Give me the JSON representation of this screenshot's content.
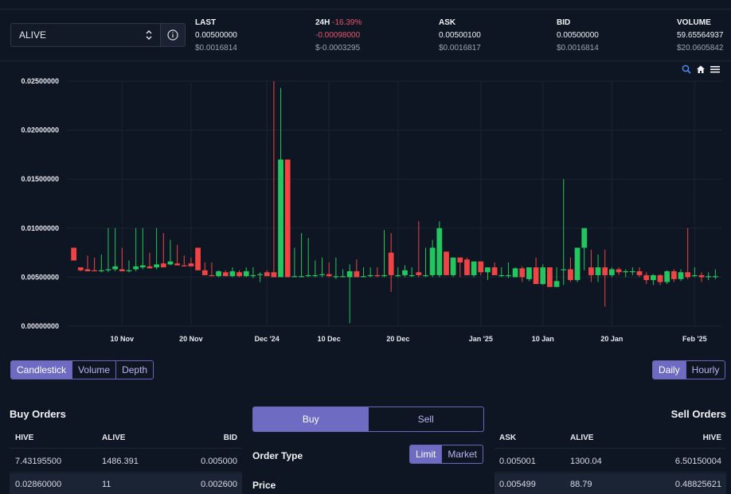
{
  "market": {
    "selected": "ALIVE"
  },
  "stats": {
    "last": {
      "label": "LAST",
      "value": "0.00500000",
      "usd": "$0.0016814"
    },
    "change": {
      "label": "24H",
      "pct": "-16.39%",
      "value": "-0.00098000",
      "usd": "$-0.0003295"
    },
    "ask": {
      "label": "ASK",
      "value": "0.00500100",
      "usd": "$0.0016817"
    },
    "bid": {
      "label": "BID",
      "value": "0.00500000",
      "usd": "$0.0016814"
    },
    "volume": {
      "label": "VOLUME",
      "value": "59.65564937",
      "usd": "$20.0605842"
    }
  },
  "chart_tools": {
    "zoom": "magnifier-icon",
    "home": "home-icon",
    "menu": "hamburger-menu-icon"
  },
  "chart_data": {
    "type": "candlestick",
    "y_ticks": [
      "0.02500000",
      "0.02000000",
      "0.01500000",
      "0.01000000",
      "0.00500000",
      "0.00000000"
    ],
    "ylim": [
      0,
      0.025
    ],
    "x_ticks": [
      {
        "label": "10 Nov",
        "day": 10
      },
      {
        "label": "20 Nov",
        "day": 20
      },
      {
        "label": "Dec '24",
        "day": 31
      },
      {
        "label": "10 Dec",
        "day": 40
      },
      {
        "label": "20 Dec",
        "day": 50
      },
      {
        "label": "Jan '25",
        "day": 62
      },
      {
        "label": "10 Jan",
        "day": 71
      },
      {
        "label": "20 Jan",
        "day": 81
      },
      {
        "label": "Feb '25",
        "day": 93
      }
    ],
    "xlim": [
      2,
      97
    ],
    "colors": {
      "up": "#22c55e",
      "down": "#ef4444",
      "grid": "#1b2433",
      "axis_text": "#e6e8ee"
    },
    "candles": [
      [
        3,
        0.008,
        0.008,
        0.0067,
        0.0067
      ],
      [
        4,
        0.006,
        0.006,
        0.0056,
        0.0057
      ],
      [
        5,
        0.0058,
        0.0072,
        0.0056,
        0.0056
      ],
      [
        6,
        0.0057,
        0.007,
        0.0056,
        0.0056
      ],
      [
        7,
        0.0056,
        0.0073,
        0.0055,
        0.0057
      ],
      [
        8,
        0.0057,
        0.01,
        0.0055,
        0.0058
      ],
      [
        9,
        0.0058,
        0.01,
        0.0056,
        0.0061
      ],
      [
        10,
        0.0058,
        0.008,
        0.0056,
        0.0056
      ],
      [
        11,
        0.0056,
        0.0067,
        0.0055,
        0.0057
      ],
      [
        12,
        0.0058,
        0.01,
        0.0056,
        0.0061
      ],
      [
        13,
        0.006,
        0.01,
        0.0058,
        0.0062
      ],
      [
        14,
        0.0061,
        0.0075,
        0.0059,
        0.0059
      ],
      [
        15,
        0.006,
        0.01,
        0.0058,
        0.0063
      ],
      [
        16,
        0.0064,
        0.0095,
        0.006,
        0.006
      ],
      [
        17,
        0.0063,
        0.0088,
        0.0062,
        0.0066
      ],
      [
        18,
        0.0064,
        0.0083,
        0.0062,
        0.0062
      ],
      [
        19,
        0.0062,
        0.0072,
        0.0061,
        0.0061
      ],
      [
        20,
        0.0064,
        0.007,
        0.0061,
        0.0061
      ],
      [
        21,
        0.008,
        0.008,
        0.0057,
        0.0057
      ],
      [
        22,
        0.0057,
        0.0065,
        0.0052,
        0.0052
      ],
      [
        23,
        0.0052,
        0.0065,
        0.0051,
        0.0051
      ],
      [
        24,
        0.0051,
        0.0057,
        0.005,
        0.0056
      ],
      [
        25,
        0.0055,
        0.0057,
        0.0051,
        0.0051
      ],
      [
        26,
        0.0051,
        0.006,
        0.005,
        0.0056
      ],
      [
        27,
        0.0055,
        0.0057,
        0.005,
        0.0051
      ],
      [
        28,
        0.0051,
        0.006,
        0.005,
        0.0056
      ],
      [
        29,
        0.0052,
        0.006,
        0.0049,
        0.0052
      ],
      [
        30,
        0.0052,
        0.0055,
        0.0045,
        0.0053
      ],
      [
        31,
        0.0055,
        0.0057,
        0.0051,
        0.0051
      ],
      [
        32,
        0.0055,
        0.025,
        0.005,
        0.005
      ],
      [
        33,
        0.005,
        0.0243,
        0.005,
        0.017
      ],
      [
        34,
        0.017,
        0.017,
        0.005,
        0.005
      ],
      [
        35,
        0.0051,
        0.008,
        0.005,
        0.0051
      ],
      [
        36,
        0.0051,
        0.0095,
        0.005,
        0.0051
      ],
      [
        37,
        0.0051,
        0.009,
        0.005,
        0.0052
      ],
      [
        38,
        0.0052,
        0.0067,
        0.005,
        0.0052
      ],
      [
        39,
        0.0052,
        0.007,
        0.005,
        0.0053
      ],
      [
        40,
        0.0053,
        0.0065,
        0.005,
        0.0051
      ],
      [
        41,
        0.0051,
        0.007,
        0.0048,
        0.0051
      ],
      [
        42,
        0.0051,
        0.0058,
        0.005,
        0.0051
      ],
      [
        43,
        0.005,
        0.0063,
        0.0003,
        0.0056
      ],
      [
        44,
        0.0056,
        0.0068,
        0.005,
        0.005
      ],
      [
        45,
        0.005,
        0.006,
        0.005,
        0.0051
      ],
      [
        46,
        0.0051,
        0.006,
        0.005,
        0.0052
      ],
      [
        47,
        0.0052,
        0.006,
        0.005,
        0.0051
      ],
      [
        48,
        0.0051,
        0.0098,
        0.005,
        0.0052
      ],
      [
        49,
        0.0075,
        0.0095,
        0.0035,
        0.0052
      ],
      [
        50,
        0.0052,
        0.006,
        0.005,
        0.0052
      ],
      [
        51,
        0.0052,
        0.0062,
        0.005,
        0.0057
      ],
      [
        52,
        0.0052,
        0.006,
        0.005,
        0.0052
      ],
      [
        53,
        0.0055,
        0.0107,
        0.005,
        0.0052
      ],
      [
        54,
        0.0052,
        0.008,
        0.005,
        0.0052
      ],
      [
        55,
        0.0052,
        0.0088,
        0.005,
        0.008
      ],
      [
        56,
        0.0052,
        0.0107,
        0.005,
        0.01
      ],
      [
        57,
        0.0076,
        0.0076,
        0.0052,
        0.0052
      ],
      [
        58,
        0.0052,
        0.007,
        0.005,
        0.007
      ],
      [
        59,
        0.007,
        0.007,
        0.005,
        0.0065
      ],
      [
        60,
        0.0068,
        0.007,
        0.0052,
        0.0052
      ],
      [
        61,
        0.0052,
        0.0065,
        0.005,
        0.0066
      ],
      [
        62,
        0.0066,
        0.0066,
        0.0052,
        0.0055
      ],
      [
        63,
        0.0055,
        0.006,
        0.0047,
        0.006
      ],
      [
        64,
        0.006,
        0.0065,
        0.0052,
        0.0052
      ],
      [
        65,
        0.0052,
        0.006,
        0.005,
        0.0052
      ],
      [
        66,
        0.0052,
        0.0065,
        0.0049,
        0.0052
      ],
      [
        67,
        0.005,
        0.006,
        0.005,
        0.0059
      ],
      [
        68,
        0.0059,
        0.0061,
        0.0045,
        0.005
      ],
      [
        69,
        0.0048,
        0.006,
        0.0046,
        0.006
      ],
      [
        70,
        0.006,
        0.007,
        0.0043,
        0.0043
      ],
      [
        71,
        0.0043,
        0.0063,
        0.0042,
        0.006
      ],
      [
        72,
        0.006,
        0.006,
        0.004,
        0.004
      ],
      [
        73,
        0.004,
        0.006,
        0.004,
        0.0046
      ],
      [
        74,
        0.0058,
        0.015,
        0.0042,
        0.0058
      ],
      [
        75,
        0.0058,
        0.007,
        0.0045,
        0.0047
      ],
      [
        76,
        0.0047,
        0.008,
        0.0045,
        0.008
      ],
      [
        77,
        0.008,
        0.01,
        0.0057,
        0.01
      ],
      [
        78,
        0.006,
        0.0078,
        0.0045,
        0.0052
      ],
      [
        79,
        0.0052,
        0.0073,
        0.0045,
        0.006
      ],
      [
        80,
        0.006,
        0.0078,
        0.002,
        0.0052
      ],
      [
        81,
        0.0052,
        0.006,
        0.005,
        0.0058
      ],
      [
        82,
        0.0058,
        0.006,
        0.0052,
        0.0055
      ],
      [
        83,
        0.0055,
        0.0058,
        0.005,
        0.0056
      ],
      [
        84,
        0.0056,
        0.006,
        0.0052,
        0.0056
      ],
      [
        85,
        0.0056,
        0.006,
        0.005,
        0.0052
      ],
      [
        86,
        0.0052,
        0.0055,
        0.0043,
        0.0047
      ],
      [
        87,
        0.0047,
        0.0053,
        0.0042,
        0.0052
      ],
      [
        88,
        0.0052,
        0.0053,
        0.0042,
        0.0045
      ],
      [
        89,
        0.0045,
        0.0057,
        0.0043,
        0.0056
      ],
      [
        90,
        0.0056,
        0.0058,
        0.0045,
        0.0048
      ],
      [
        91,
        0.0048,
        0.0058,
        0.0046,
        0.0055
      ],
      [
        92,
        0.0055,
        0.01,
        0.0048,
        0.005
      ],
      [
        93,
        0.0052,
        0.006,
        0.005,
        0.0052
      ],
      [
        94,
        0.0052,
        0.0055,
        0.0045,
        0.005
      ],
      [
        95,
        0.005,
        0.0055,
        0.0047,
        0.0051
      ],
      [
        96,
        0.0051,
        0.0058,
        0.0048,
        0.0051
      ]
    ]
  },
  "chart_type_tabs": [
    {
      "label": "Candlestick",
      "active": true
    },
    {
      "label": "Volume",
      "active": false
    },
    {
      "label": "Depth",
      "active": false
    }
  ],
  "interval_tabs": [
    {
      "label": "Daily",
      "active": true
    },
    {
      "label": "Hourly",
      "active": false
    }
  ],
  "buy_orders": {
    "title": "Buy Orders",
    "headers": [
      "HIVE",
      "ALIVE",
      "BID"
    ],
    "rows": [
      [
        "7.43195500",
        "1486.391",
        "0.005000"
      ],
      [
        "0.02860000",
        "11",
        "0.002600"
      ]
    ]
  },
  "sell_orders": {
    "title": "Sell Orders",
    "headers": [
      "ASK",
      "ALIVE",
      "HIVE"
    ],
    "rows": [
      [
        "0.005001",
        "1300.04",
        "6.50150004"
      ],
      [
        "0.005499",
        "88.79",
        "0.48825621"
      ]
    ]
  },
  "trade_form": {
    "buy_label": "Buy",
    "sell_label": "Sell",
    "order_type_label": "Order Type",
    "limit_label": "Limit",
    "market_label": "Market",
    "price_label": "Price"
  }
}
